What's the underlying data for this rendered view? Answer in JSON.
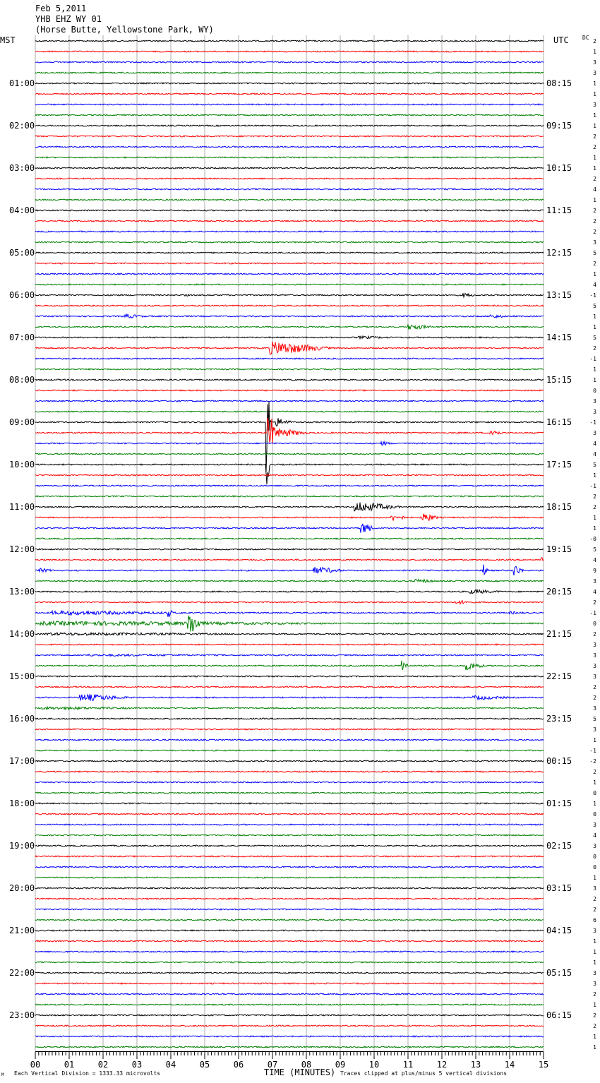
{
  "header": {
    "date": "Feb 5,2011",
    "station": "YHB EHZ WY 01",
    "location": "(Horse Butte, Yellowstone Park, WY)"
  },
  "labels": {
    "left_timezone": "MST",
    "right_timezone": "UTC",
    "dc_header": "DC",
    "xlabel": "TIME (MINUTES)",
    "footer_left": "Each Vertical Division = 1333.33 microvolts",
    "footer_right": "Traces clipped at plus/minus 5 vertical divisions",
    "corner_mark": "M"
  },
  "colors": {
    "trace_cycle": [
      "#000000",
      "#ff0000",
      "#0000ff",
      "#008000"
    ],
    "grid": "#9a9a9a",
    "background": "#ffffff"
  },
  "chart_data": {
    "type": "line",
    "title": "YHB EHZ WY 01",
    "xlabel": "TIME (MINUTES)",
    "x_range": [
      0,
      15
    ],
    "x_ticks": [
      "00",
      "01",
      "02",
      "03",
      "04",
      "05",
      "06",
      "07",
      "08",
      "09",
      "10",
      "11",
      "12",
      "13",
      "14",
      "15"
    ],
    "rows_per_hour": 4,
    "row_minutes": 15,
    "mst_hour_labels": [
      "01:00",
      "02:00",
      "03:00",
      "04:00",
      "05:00",
      "06:00",
      "07:00",
      "08:00",
      "09:00",
      "10:00",
      "11:00",
      "12:00",
      "13:00",
      "14:00",
      "15:00",
      "16:00",
      "17:00",
      "18:00",
      "19:00",
      "20:00",
      "21:00",
      "22:00",
      "23:00"
    ],
    "utc_hour_labels": [
      "08:15",
      "09:15",
      "10:15",
      "11:15",
      "12:15",
      "13:15",
      "14:15",
      "15:15",
      "16:15",
      "17:15",
      "18:15",
      "19:15",
      "20:15",
      "21:15",
      "22:15",
      "23:15",
      "00:15",
      "01:15",
      "02:15",
      "03:15",
      "04:15",
      "05:15",
      "06:15"
    ],
    "dc_offsets": [
      "2",
      "1",
      "3",
      "3",
      "1",
      "1",
      "3",
      "1",
      "1",
      "2",
      "2",
      "1",
      "1",
      "2",
      "4",
      "1",
      "2",
      "2",
      "2",
      "3",
      "5",
      "2",
      "1",
      "4",
      "-1",
      "5",
      "1",
      "1",
      "5",
      "2",
      "-1",
      "1",
      "1",
      "0",
      "3",
      "3",
      "-1",
      "3",
      "4",
      "4",
      "5",
      "1",
      "-1",
      "2",
      "2",
      "1",
      "1",
      "-0",
      "5",
      "4",
      "9",
      "3",
      "4",
      "2",
      "-1",
      "0",
      "2",
      "3",
      "3",
      "3",
      "3",
      "2",
      "2",
      "3",
      "5",
      "3",
      "1",
      "-1",
      "-2",
      "2",
      "1",
      "0",
      "1",
      "0",
      "3",
      "4",
      "3",
      "0",
      "0",
      "1",
      "3",
      "2",
      "2",
      "6",
      "3",
      "1",
      "1",
      "1",
      "3",
      "3",
      "2",
      "1",
      "2",
      "2",
      "1",
      "1"
    ],
    "noise_amplitude_px": 0.9,
    "events": [
      {
        "row": 24,
        "minute": 12.6,
        "duration": 0.5,
        "amplitude": 3
      },
      {
        "row": 24,
        "minute": 4.4,
        "duration": 0.2,
        "amplitude": 2
      },
      {
        "row": 26,
        "minute": 2.6,
        "duration": 0.8,
        "amplitude": 3
      },
      {
        "row": 26,
        "minute": 13.4,
        "duration": 0.6,
        "amplitude": 3
      },
      {
        "row": 27,
        "minute": 11.0,
        "duration": 0.8,
        "amplitude": 4
      },
      {
        "row": 28,
        "minute": 9.5,
        "duration": 1.5,
        "amplitude": 2
      },
      {
        "row": 29,
        "minute": 6.9,
        "duration": 1.8,
        "amplitude": 9
      },
      {
        "row": 36,
        "minute": 6.8,
        "duration": 0.15,
        "amplitude": 75
      },
      {
        "row": 36,
        "minute": 7.1,
        "duration": 0.5,
        "amplitude": 6
      },
      {
        "row": 37,
        "minute": 6.85,
        "duration": 0.3,
        "amplitude": 28
      },
      {
        "row": 37,
        "minute": 7.1,
        "duration": 1.0,
        "amplitude": 6
      },
      {
        "row": 37,
        "minute": 13.4,
        "duration": 0.4,
        "amplitude": 6
      },
      {
        "row": 38,
        "minute": 10.2,
        "duration": 0.4,
        "amplitude": 3
      },
      {
        "row": 40,
        "minute": 6.8,
        "duration": 0.12,
        "amplitude": 35
      },
      {
        "row": 44,
        "minute": 9.4,
        "duration": 1.4,
        "amplitude": 7
      },
      {
        "row": 45,
        "minute": 10.5,
        "duration": 0.5,
        "amplitude": 5
      },
      {
        "row": 45,
        "minute": 11.4,
        "duration": 0.5,
        "amplitude": 7
      },
      {
        "row": 46,
        "minute": 9.6,
        "duration": 0.4,
        "amplitude": 9
      },
      {
        "row": 49,
        "minute": 14.9,
        "duration": 0.1,
        "amplitude": 6
      },
      {
        "row": 50,
        "minute": 8.2,
        "duration": 1.0,
        "amplitude": 5
      },
      {
        "row": 50,
        "minute": 13.2,
        "duration": 0.2,
        "amplitude": 9
      },
      {
        "row": 50,
        "minute": 14.1,
        "duration": 0.3,
        "amplitude": 9
      },
      {
        "row": 50,
        "minute": 0.1,
        "duration": 0.6,
        "amplitude": 3
      },
      {
        "row": 51,
        "minute": 11.2,
        "duration": 0.8,
        "amplitude": 3
      },
      {
        "row": 52,
        "minute": 12.8,
        "duration": 1.2,
        "amplitude": 3
      },
      {
        "row": 53,
        "minute": 12.4,
        "duration": 0.6,
        "amplitude": 3
      },
      {
        "row": 54,
        "minute": 0.5,
        "duration": 5.0,
        "amplitude": 3
      },
      {
        "row": 54,
        "minute": 3.9,
        "duration": 0.2,
        "amplitude": 6
      },
      {
        "row": 54,
        "minute": 14.0,
        "duration": 0.7,
        "amplitude": 2
      },
      {
        "row": 55,
        "minute": 0.1,
        "duration": 11.0,
        "amplitude": 3
      },
      {
        "row": 55,
        "minute": 4.5,
        "duration": 0.4,
        "amplitude": 18
      },
      {
        "row": 56,
        "minute": 0.3,
        "duration": 8.5,
        "amplitude": 2
      },
      {
        "row": 58,
        "minute": 1.5,
        "duration": 7.5,
        "amplitude": 1.5
      },
      {
        "row": 59,
        "minute": 10.8,
        "duration": 0.2,
        "amplitude": 12
      },
      {
        "row": 59,
        "minute": 12.7,
        "duration": 0.6,
        "amplitude": 6
      },
      {
        "row": 62,
        "minute": 1.3,
        "duration": 1.6,
        "amplitude": 5
      },
      {
        "row": 62,
        "minute": 12.9,
        "duration": 1.4,
        "amplitude": 3
      },
      {
        "row": 63,
        "minute": 0.2,
        "duration": 4.5,
        "amplitude": 2
      }
    ]
  }
}
